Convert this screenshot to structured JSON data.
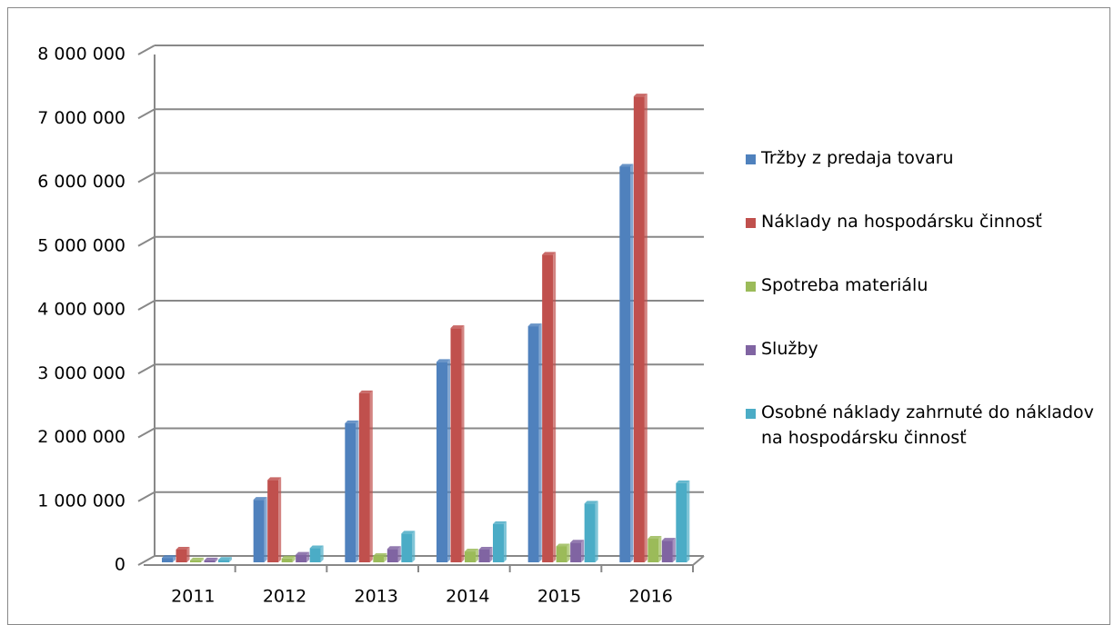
{
  "chart_data": {
    "type": "bar3d",
    "categories": [
      "2011",
      "2012",
      "2013",
      "2014",
      "2015",
      "2016"
    ],
    "series": [
      {
        "name": "Tržby z predaja tovaru",
        "color": "#4f81bd",
        "values": [
          70000,
          980000,
          2180000,
          3140000,
          3700000,
          6200000
        ]
      },
      {
        "name": "Náklady na hospodársku činnosť",
        "color": "#c0504d",
        "values": [
          200000,
          1290000,
          2650000,
          3670000,
          4820000,
          7300000
        ]
      },
      {
        "name": "Spotreba materiálu",
        "color": "#9bbb59",
        "values": [
          30000,
          60000,
          100000,
          170000,
          250000,
          370000
        ]
      },
      {
        "name": "Služby",
        "color": "#8064a2",
        "values": [
          30000,
          120000,
          210000,
          200000,
          310000,
          340000
        ]
      },
      {
        "name": "Osobné náklady zahrnuté do nákladov na hospodársku činnosť",
        "color": "#4bacc6",
        "values": [
          40000,
          220000,
          450000,
          600000,
          920000,
          1240000
        ]
      }
    ],
    "ylim": [
      0,
      8000000
    ],
    "yticks": [
      0,
      {
        "value": 1000000,
        "label": "1 000 000"
      },
      {
        "value": 2000000,
        "label": "2 000 000"
      },
      {
        "value": 3000000,
        "label": "3 000 000"
      },
      {
        "value": 4000000,
        "label": "4 000 000"
      },
      {
        "value": 5000000,
        "label": "5 000 000"
      },
      {
        "value": 6000000,
        "label": "6 000 000"
      },
      {
        "value": 7000000,
        "label": "7 000 000"
      },
      {
        "value": 8000000,
        "label": "8 000 000"
      }
    ],
    "grid": true,
    "legend": "right"
  }
}
